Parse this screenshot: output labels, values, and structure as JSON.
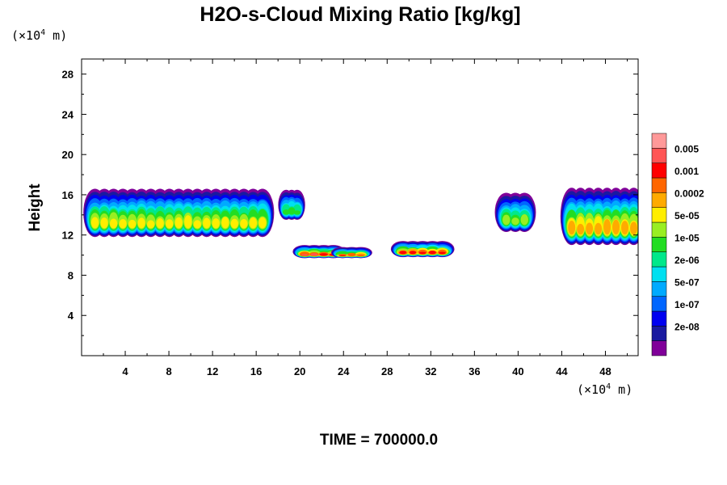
{
  "chart_data": {
    "type": "heatmap",
    "title": "H2O-s-Cloud Mixing Ratio [kg/kg]",
    "ylabel": "Height",
    "xunit": "(×10",
    "xunit_exp": "4",
    "xunit_tail": " m)",
    "yunit": "(×10",
    "yunit_exp": "4",
    "yunit_tail": " m)",
    "footer": "TIME = 700000.0",
    "xlim": [
      0,
      51
    ],
    "ylim": [
      0,
      29.5
    ],
    "x_ticks": [
      "4",
      "8",
      "12",
      "16",
      "20",
      "24",
      "28",
      "32",
      "36",
      "40",
      "44",
      "48"
    ],
    "y_ticks": [
      "4",
      "8",
      "12",
      "16",
      "20",
      "24",
      "28"
    ],
    "colorbar": {
      "labels": [
        "0.005",
        "0.001",
        "0.0002",
        "5e-05",
        "1e-05",
        "2e-06",
        "5e-07",
        "1e-07",
        "2e-08"
      ],
      "colors": [
        "#800099",
        "#1a1aa0",
        "#0000f0",
        "#0066ff",
        "#00aaff",
        "#00e0f0",
        "#00e88a",
        "#22dd22",
        "#99ee22",
        "#ffee00",
        "#ffaa00",
        "#ff6600",
        "#ff0000",
        "#ff5555",
        "#ff9999"
      ]
    },
    "clouds": [
      {
        "x": [
          0.8,
          17
        ],
        "base": 11.8,
        "top": 16.6,
        "level": 9
      },
      {
        "x": [
          18.5,
          20
        ],
        "base": 13.5,
        "top": 16.5,
        "level": 7
      },
      {
        "x": [
          20,
          23.5
        ],
        "base": 9.7,
        "top": 11.0,
        "level": 13
      },
      {
        "x": [
          23.5,
          26
        ],
        "base": 9.7,
        "top": 10.8,
        "level": 12
      },
      {
        "x": [
          29,
          33.5
        ],
        "base": 9.8,
        "top": 11.4,
        "level": 12
      },
      {
        "x": [
          38.5,
          41
        ],
        "base": 12.3,
        "top": 16.2,
        "level": 8
      },
      {
        "x": [
          44.5,
          51
        ],
        "base": 11.0,
        "top": 16.7,
        "level": 10
      }
    ]
  }
}
